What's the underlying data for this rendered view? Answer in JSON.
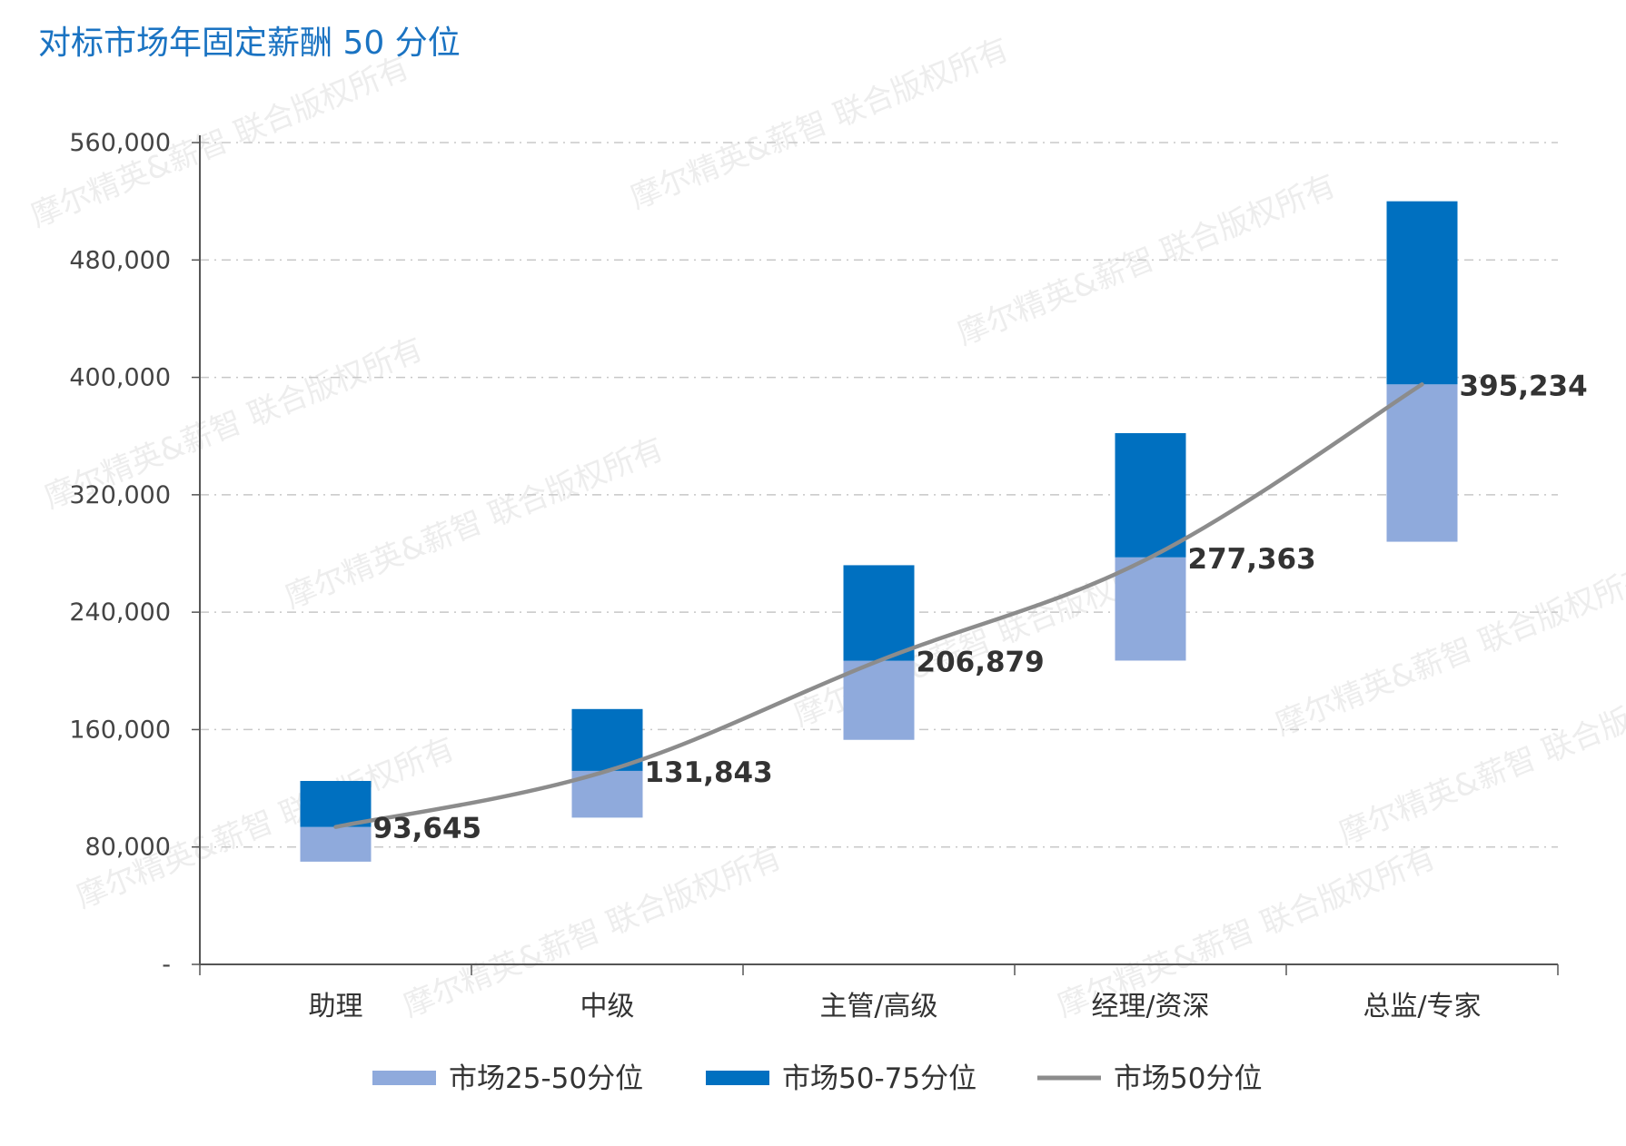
{
  "chart_data": {
    "type": "bar",
    "title": "对标市场年固定薪酬 50 分位",
    "categories": [
      "助理",
      "中级",
      "主管/高级",
      "经理/资深",
      "总监/专家"
    ],
    "y_ticks": [
      "-",
      "80,000",
      "160,000",
      "240,000",
      "320,000",
      "400,000",
      "480,000",
      "560,000"
    ],
    "ylim": [
      0,
      560000
    ],
    "grid": true,
    "legend_position": "bottom",
    "series": [
      {
        "name": "市场25-50分位",
        "kind": "stacked-range",
        "low": [
          70000,
          100000,
          153000,
          207000,
          288000
        ],
        "high": [
          93645,
          131843,
          206879,
          277363,
          395234
        ],
        "color": "#8faadc"
      },
      {
        "name": "市场50-75分位",
        "kind": "stacked-range",
        "low": [
          93645,
          131843,
          206879,
          277363,
          395234
        ],
        "high": [
          125000,
          174000,
          272000,
          362000,
          520000
        ],
        "color": "#0070c0"
      },
      {
        "name": "市场50分位",
        "kind": "line",
        "values": [
          93645,
          131843,
          206879,
          277363,
          395234
        ],
        "color": "#8c8c8c"
      }
    ],
    "data_labels": [
      "93,645",
      "131,843",
      "206,879",
      "277,363",
      "395,234"
    ],
    "watermark": "摩尔精英&薪智 联合版权所有"
  }
}
